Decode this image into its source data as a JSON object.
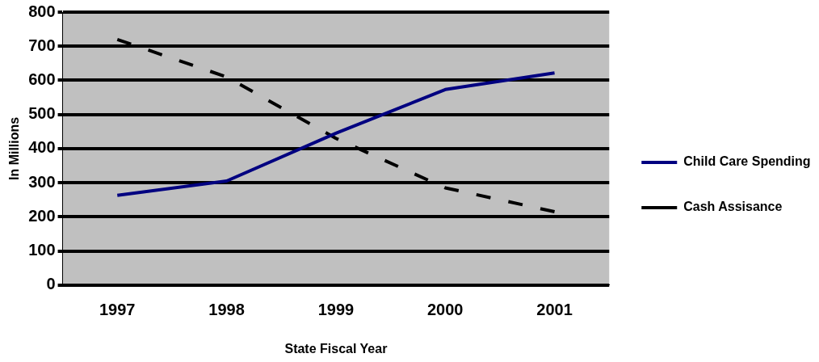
{
  "chart_data": {
    "type": "line",
    "xlabel": "State Fiscal Year",
    "ylabel": "In Millions",
    "categories": [
      "1997",
      "1998",
      "1999",
      "2000",
      "2001"
    ],
    "series": [
      {
        "name": "Child Care Spending",
        "color": "#000080",
        "values": [
          263,
          305,
          445,
          573,
          622
        ],
        "line_style": "solid"
      },
      {
        "name": "Cash Assisance",
        "color": "#000000",
        "values": [
          720,
          610,
          430,
          285,
          215
        ],
        "line_style": "dashed"
      }
    ],
    "ylim": [
      0,
      800
    ],
    "yticks": [
      0,
      100,
      200,
      300,
      400,
      500,
      600,
      700,
      800
    ],
    "grid": "y",
    "legend": "right",
    "marker": "none"
  }
}
